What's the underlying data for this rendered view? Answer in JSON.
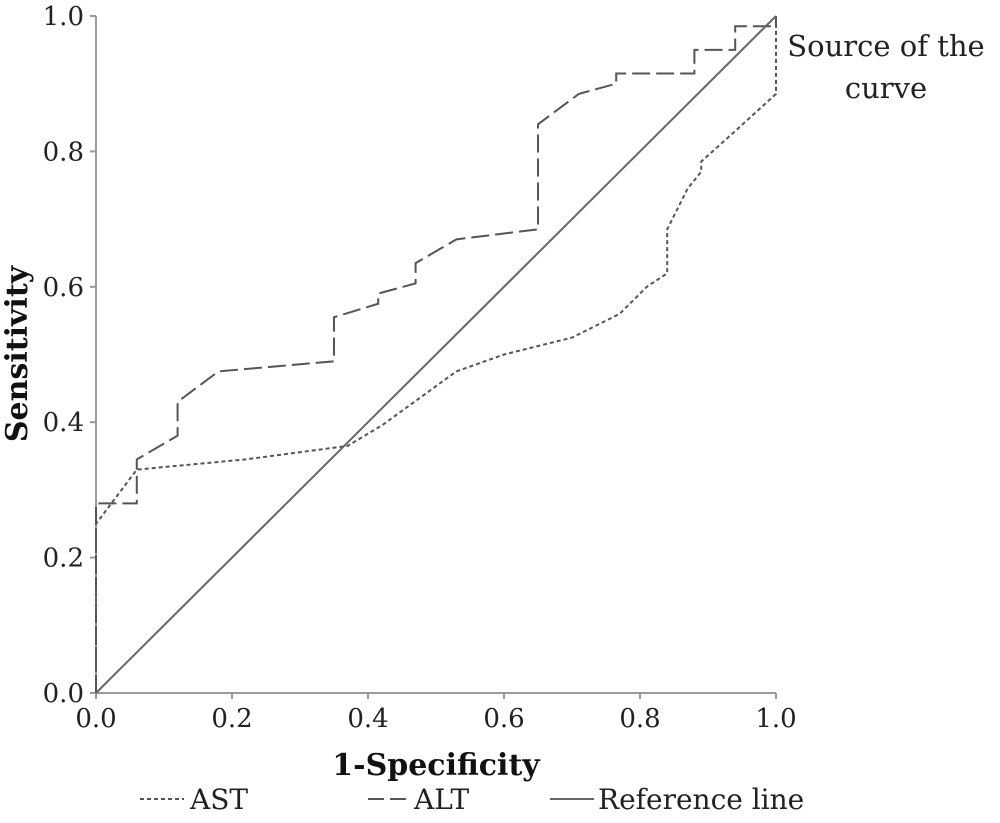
{
  "chart_data": {
    "type": "line",
    "xlabel": "1-Specificity",
    "ylabel": "Sensitivity",
    "xlim": [
      0,
      1
    ],
    "ylim": [
      0,
      1
    ],
    "x_ticks": [
      "0.0",
      "0.2",
      "0.4",
      "0.6",
      "0.8",
      "1.0"
    ],
    "y_ticks": [
      "0.0",
      "0.2",
      "0.4",
      "0.6",
      "0.8",
      "1.0"
    ],
    "grid": false,
    "legend_position": "bottom",
    "annotation": [
      "Source of the",
      "curve"
    ],
    "series": [
      {
        "name": "AST",
        "style": "dotted",
        "color": "#555555",
        "points": [
          [
            0,
            0
          ],
          [
            0,
            0.25
          ],
          [
            0.06,
            0.33
          ],
          [
            0.22,
            0.345
          ],
          [
            0.37,
            0.365
          ],
          [
            0.42,
            0.395
          ],
          [
            0.53,
            0.475
          ],
          [
            0.6,
            0.5
          ],
          [
            0.7,
            0.525
          ],
          [
            0.77,
            0.56
          ],
          [
            0.81,
            0.6
          ],
          [
            0.84,
            0.62
          ],
          [
            0.84,
            0.685
          ],
          [
            0.87,
            0.745
          ],
          [
            0.89,
            0.77
          ],
          [
            0.89,
            0.785
          ],
          [
            0.94,
            0.83
          ],
          [
            1,
            0.885
          ],
          [
            1,
            1
          ]
        ]
      },
      {
        "name": "ALT",
        "style": "dashed",
        "color": "#555555",
        "points": [
          [
            0,
            0
          ],
          [
            0,
            0.28
          ],
          [
            0.06,
            0.28
          ],
          [
            0.06,
            0.345
          ],
          [
            0.12,
            0.38
          ],
          [
            0.12,
            0.43
          ],
          [
            0.18,
            0.475
          ],
          [
            0.35,
            0.49
          ],
          [
            0.35,
            0.555
          ],
          [
            0.415,
            0.575
          ],
          [
            0.415,
            0.59
          ],
          [
            0.47,
            0.605
          ],
          [
            0.47,
            0.635
          ],
          [
            0.53,
            0.67
          ],
          [
            0.65,
            0.685
          ],
          [
            0.65,
            0.84
          ],
          [
            0.71,
            0.885
          ],
          [
            0.765,
            0.9
          ],
          [
            0.765,
            0.915
          ],
          [
            0.88,
            0.915
          ],
          [
            0.88,
            0.95
          ],
          [
            0.94,
            0.95
          ],
          [
            0.94,
            0.985
          ],
          [
            1,
            0.985
          ],
          [
            1,
            1
          ]
        ]
      },
      {
        "name": "Reference line",
        "style": "solid",
        "color": "#666666",
        "points": [
          [
            0,
            0
          ],
          [
            1,
            1
          ]
        ]
      }
    ]
  }
}
